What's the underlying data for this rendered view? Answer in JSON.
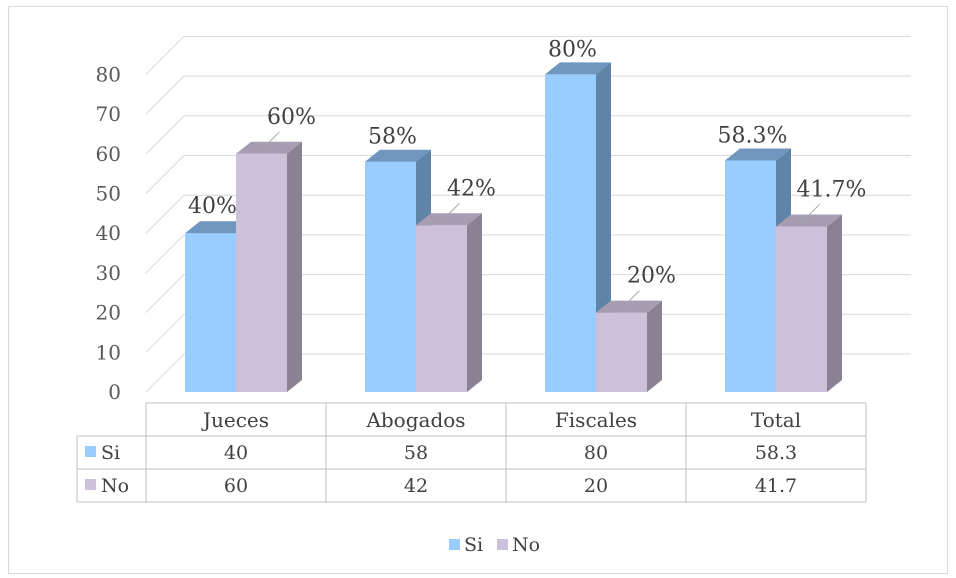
{
  "chart_data": {
    "type": "bar",
    "categories": [
      "Jueces",
      "Abogados",
      "Fiscales",
      "Total"
    ],
    "series": [
      {
        "name": "Si",
        "values": [
          40,
          58,
          80,
          58.3
        ],
        "labels": [
          "40%",
          "58%",
          "80%",
          "58.3%"
        ],
        "color": "#99CCFF",
        "side_color": "#5F84A8",
        "top_color": "#6E96BF"
      },
      {
        "name": "No",
        "values": [
          60,
          42,
          20,
          41.7
        ],
        "labels": [
          "60%",
          "42%",
          "20%",
          "41.7%"
        ],
        "color": "#CCC0DA",
        "side_color": "#8A8292",
        "top_color": "#A69DB2"
      }
    ],
    "ylim": [
      0,
      80
    ],
    "yticks": [
      "0",
      "10",
      "20",
      "30",
      "40",
      "50",
      "60",
      "70",
      "80"
    ],
    "table_values": {
      "Si": [
        "40",
        "58",
        "80",
        "58.3"
      ],
      "No": [
        "60",
        "42",
        "20",
        "41.7"
      ]
    },
    "legend": [
      "Si",
      "No"
    ],
    "legend_position": "bottom",
    "grid": true
  }
}
